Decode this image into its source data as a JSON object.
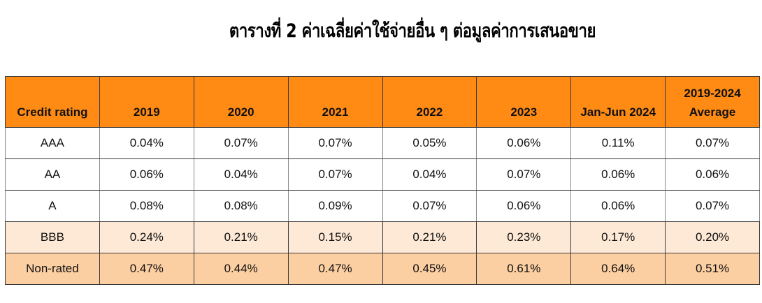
{
  "title": "ตารางที่ 2 ค่าเฉลี่ยค่าใช้จ่ายอื่น ๆ ต่อมูลค่าการเสนอขาย",
  "colors": {
    "header": "#FF8B14",
    "row_bbb": "#FDE9D6",
    "row_nonrated": "#FCCFA2"
  },
  "table": {
    "headers": [
      "Credit rating",
      "2019",
      "2020",
      "2021",
      "2022",
      "2023",
      "Jan-Jun 2024",
      "2019-2024 Average"
    ],
    "header_last_lines": [
      "2019-2024",
      "Average"
    ],
    "rows": [
      {
        "rating": "AAA",
        "values": [
          "0.04%",
          "0.07%",
          "0.07%",
          "0.05%",
          "0.06%",
          "0.11%",
          "0.07%"
        ]
      },
      {
        "rating": "AA",
        "values": [
          "0.06%",
          "0.04%",
          "0.07%",
          "0.04%",
          "0.07%",
          "0.06%",
          "0.06%"
        ]
      },
      {
        "rating": "A",
        "values": [
          "0.08%",
          "0.08%",
          "0.09%",
          "0.07%",
          "0.06%",
          "0.06%",
          "0.07%"
        ]
      },
      {
        "rating": "BBB",
        "values": [
          "0.24%",
          "0.21%",
          "0.15%",
          "0.21%",
          "0.23%",
          "0.17%",
          "0.20%"
        ]
      },
      {
        "rating": "Non-rated",
        "values": [
          "0.47%",
          "0.44%",
          "0.47%",
          "0.45%",
          "0.61%",
          "0.64%",
          "0.51%"
        ]
      }
    ]
  }
}
